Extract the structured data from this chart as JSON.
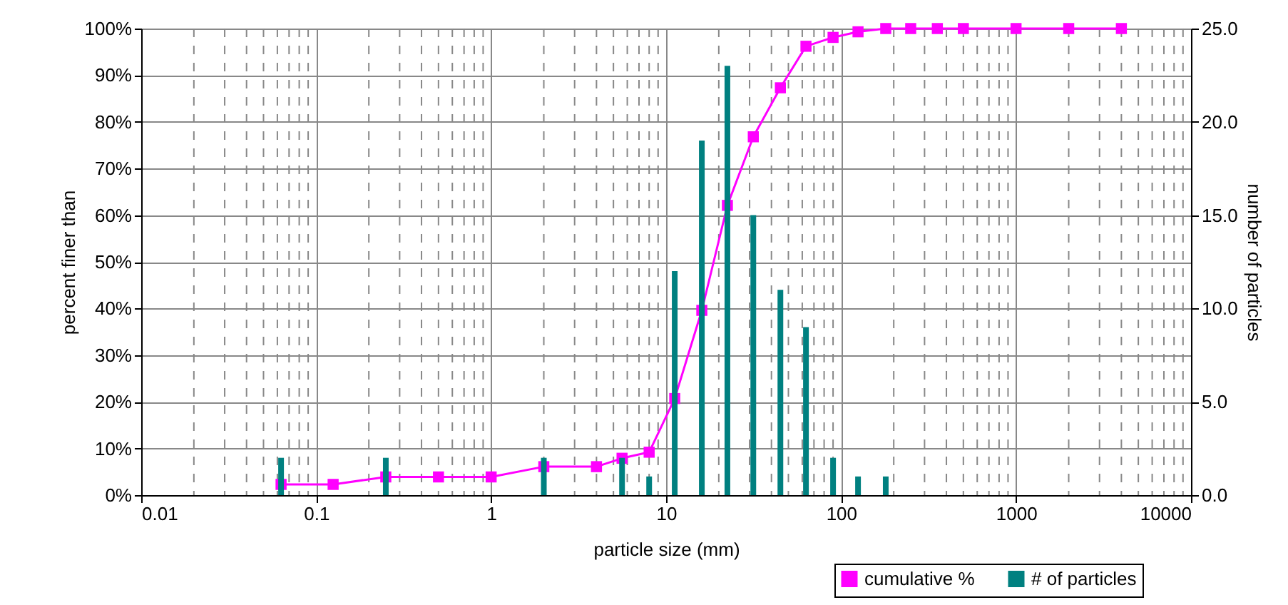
{
  "chart_data": {
    "type": "line",
    "xlabel": "particle size (mm)",
    "ylabel": "percent finer than",
    "y2label": "number of particles",
    "log": "x",
    "x": [
      0.063,
      0.125,
      0.25,
      0.5,
      1,
      2,
      4,
      5.6,
      8,
      11.2,
      16,
      22.4,
      31.5,
      45,
      63,
      90,
      125,
      180,
      250,
      355,
      500,
      1000,
      2000,
      4000
    ],
    "series": [
      {
        "name": "cumulative %",
        "color": "#ff00ff",
        "marker": "square",
        "values": [
          2.3,
          2.3,
          3.9,
          3.9,
          3.9,
          6.1,
          6.1,
          7.9,
          9.2,
          20.7,
          39.6,
          62.1,
          76.8,
          87.3,
          96.2,
          98.1,
          99.3,
          100,
          100,
          100,
          100,
          100,
          100,
          100
        ]
      },
      {
        "name": "# of particles",
        "type": "bar",
        "axis": "y2",
        "color": "#008080",
        "values": [
          2,
          0,
          2,
          0,
          0,
          2,
          0,
          2,
          1,
          12,
          19,
          23,
          15,
          11,
          9,
          2,
          1,
          1,
          0,
          0,
          0,
          0,
          0,
          0
        ]
      }
    ],
    "xlim": [
      0.01,
      10000
    ],
    "xticks": [
      0.01,
      {
        "value": 0.02,
        "label": null
      },
      {
        "value": 0.03,
        "label": null
      },
      {
        "value": 0.04,
        "label": null
      },
      {
        "value": 0.05,
        "label": null
      },
      {
        "value": 0.06,
        "label": null
      },
      {
        "value": 0.07,
        "label": null
      },
      {
        "value": 0.08,
        "label": null
      },
      {
        "value": 0.09,
        "label": null
      },
      0.1,
      {
        "value": 0.2,
        "label": null
      },
      {
        "value": 0.3,
        "label": null
      },
      {
        "value": 0.4,
        "label": null
      },
      {
        "value": 0.5,
        "label": null
      },
      {
        "value": 0.6,
        "label": null
      },
      {
        "value": 0.7,
        "label": null
      },
      {
        "value": 0.8,
        "label": null
      },
      {
        "value": 0.9,
        "label": null
      },
      1,
      {
        "value": 2,
        "label": null
      },
      {
        "value": 3,
        "label": null
      },
      {
        "value": 4,
        "label": null
      },
      {
        "value": 5,
        "label": null
      },
      {
        "value": 6,
        "label": null
      },
      {
        "value": 7,
        "label": null
      },
      {
        "value": 8,
        "label": null
      },
      {
        "value": 9,
        "label": null
      },
      10,
      {
        "value": 20,
        "label": null
      },
      {
        "value": 30,
        "label": null
      },
      {
        "value": 40,
        "label": null
      },
      {
        "value": 50,
        "label": null
      },
      {
        "value": 60,
        "label": null
      },
      {
        "value": 70,
        "label": null
      },
      {
        "value": 80,
        "label": null
      },
      {
        "value": 90,
        "label": null
      },
      100,
      {
        "value": 200,
        "label": null
      },
      {
        "value": 300,
        "label": null
      },
      {
        "value": 400,
        "label": null
      },
      {
        "value": 500,
        "label": null
      },
      {
        "value": 600,
        "label": null
      },
      {
        "value": 700,
        "label": null
      },
      {
        "value": 800,
        "label": null
      },
      {
        "value": 900,
        "label": null
      },
      1000,
      {
        "value": 2000,
        "label": null
      },
      {
        "value": 3000,
        "label": null
      },
      {
        "value": 4000,
        "label": null
      },
      {
        "value": 5000,
        "label": null
      },
      {
        "value": 6000,
        "label": null
      },
      {
        "value": 7000,
        "label": null
      },
      {
        "value": 8000,
        "label": null
      },
      {
        "value": 9000,
        "label": null
      },
      10000
    ],
    "ylim": [
      0,
      100
    ],
    "yticks": [
      {
        "value": 0,
        "label": "0%"
      },
      {
        "value": 10,
        "label": "10%"
      },
      {
        "value": 20,
        "label": "20%"
      },
      {
        "value": 30,
        "label": "30%"
      },
      {
        "value": 40,
        "label": "40%"
      },
      {
        "value": 50,
        "label": "50%"
      },
      {
        "value": 60,
        "label": "60%"
      },
      {
        "value": 70,
        "label": "70%"
      },
      {
        "value": 80,
        "label": "80%"
      },
      {
        "value": 90,
        "label": "90%"
      },
      {
        "value": 100,
        "label": "100%"
      }
    ],
    "y2lim": [
      0,
      25
    ],
    "y2ticks": [
      {
        "value": 0,
        "label": "0.0"
      },
      {
        "value": 5,
        "label": "5.0"
      },
      {
        "value": 10,
        "label": "10.0"
      },
      {
        "value": 15,
        "label": "15.0"
      },
      {
        "value": 20,
        "label": "20.0"
      },
      {
        "value": 25,
        "label": "25.0"
      }
    ],
    "grid": true,
    "legend": "bottom right"
  }
}
